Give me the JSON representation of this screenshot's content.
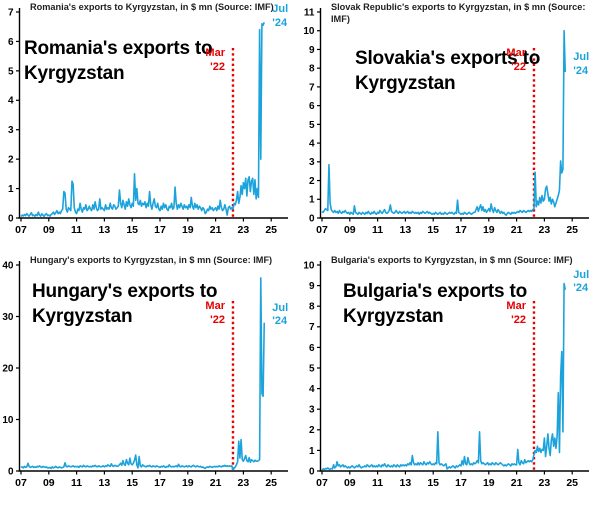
{
  "colors": {
    "series_line": "#1CA3DC",
    "event_line": "#E60000",
    "event_text": "#E60000",
    "end_text": "#1CA3DC",
    "axis": "#000000",
    "annotation_text": "#000000",
    "background": "#FFFFFF"
  },
  "chart_data": [
    {
      "type": "line",
      "country": "Romania",
      "title": "Romania's exports to Kyrgyzstan, in $ mn (Source: IMF)",
      "annotation": "Romania's exports to Kyrgyzstan",
      "x_start_year": 2007,
      "x_frequency": "monthly",
      "x_last_point": "Jul 2024",
      "ylim": [
        0,
        7
      ],
      "ytick_step": 1,
      "xtick_labels": [
        "07",
        "09",
        "11",
        "13",
        "15",
        "17",
        "19",
        "21",
        "23",
        "25"
      ],
      "grid": false,
      "legend": false,
      "vline": {
        "x_year": 2022.25,
        "label_line1": "Mar",
        "label_line2": "'22"
      },
      "end_label": {
        "line1": "Jul",
        "line2": "'24"
      },
      "values": [
        0.05,
        0.1,
        0.07,
        0.12,
        0.08,
        0.15,
        0.1,
        0.06,
        0.12,
        0.18,
        0.08,
        0.1,
        0.06,
        0.12,
        0.08,
        0.2,
        0.1,
        0.06,
        0.14,
        0.1,
        0.05,
        0.12,
        0.15,
        0.08,
        0.1,
        0.06,
        0.12,
        0.15,
        0.2,
        0.12,
        0.18,
        0.25,
        0.15,
        0.2,
        0.15,
        0.25,
        0.3,
        0.9,
        0.85,
        0.3,
        0.2,
        0.35,
        0.3,
        0.25,
        1.25,
        1.15,
        0.35,
        0.2,
        0.15,
        0.3,
        0.25,
        0.5,
        0.3,
        0.2,
        0.35,
        0.3,
        0.45,
        0.25,
        0.3,
        0.4,
        0.3,
        0.25,
        0.45,
        0.3,
        0.55,
        0.35,
        0.25,
        0.3,
        0.65,
        0.3,
        0.35,
        0.3,
        0.25,
        0.45,
        0.3,
        0.35,
        0.3,
        0.5,
        0.35,
        0.3,
        0.45,
        0.4,
        0.3,
        0.35,
        0.4,
        0.95,
        0.5,
        0.35,
        0.6,
        0.45,
        0.3,
        0.55,
        0.4,
        0.65,
        0.45,
        0.35,
        0.5,
        0.4,
        1.5,
        0.6,
        1.0,
        0.5,
        0.45,
        0.6,
        0.4,
        0.5,
        0.45,
        0.55,
        0.35,
        0.5,
        0.4,
        0.9,
        0.45,
        0.3,
        0.5,
        0.65,
        0.4,
        0.35,
        0.5,
        0.3,
        0.25,
        0.4,
        0.3,
        0.5,
        0.35,
        0.45,
        0.3,
        0.25,
        0.4,
        0.35,
        0.5,
        0.3,
        0.35,
        1.05,
        0.5,
        0.3,
        0.45,
        0.35,
        0.5,
        0.4,
        0.3,
        0.45,
        0.35,
        0.4,
        0.3,
        0.45,
        0.35,
        0.7,
        0.4,
        0.3,
        0.5,
        0.35,
        0.45,
        0.3,
        0.4,
        0.35,
        0.25,
        0.35,
        0.3,
        0.15,
        0.2,
        0.3,
        0.25,
        0.4,
        0.3,
        0.35,
        0.25,
        0.3,
        0.35,
        0.25,
        0.4,
        0.3,
        0.6,
        0.35,
        0.25,
        0.3,
        0.45,
        0.3,
        0.1,
        0.35,
        0.4,
        0.3,
        0.35,
        0.3,
        0.5,
        0.45,
        0.6,
        0.9,
        0.5,
        0.7,
        1.1,
        0.8,
        1.2,
        1.0,
        1.35,
        0.75,
        1.3,
        1.4,
        0.9,
        1.25,
        1.35,
        0.8,
        1.3,
        0.65,
        1.0,
        0.7,
        6.4,
        2.0,
        6.6,
        6.55,
        6.65
      ]
    },
    {
      "type": "line",
      "country": "Slovakia",
      "title": "Slovak Republic's exports to Kyrgyzstan, in $ mn (Source: IMF)",
      "annotation": "Slovakia's exports to Kyrgyzstan",
      "x_start_year": 2007,
      "x_frequency": "monthly",
      "x_last_point": "Jul 2024",
      "ylim": [
        0,
        11
      ],
      "ytick_step": 1,
      "xtick_labels": [
        "07",
        "09",
        "11",
        "13",
        "15",
        "17",
        "19",
        "21",
        "23",
        "25"
      ],
      "grid": false,
      "legend": false,
      "vline": {
        "x_year": 2022.25,
        "label_line1": "Mar",
        "label_line2": "'22"
      },
      "end_label": {
        "line1": "Jul",
        "line2": "'24"
      },
      "values": [
        0.35,
        0.3,
        0.4,
        0.5,
        0.45,
        0.4,
        2.85,
        0.8,
        0.45,
        0.35,
        0.3,
        0.4,
        0.3,
        0.35,
        0.25,
        0.4,
        0.3,
        0.25,
        0.35,
        0.3,
        0.4,
        0.3,
        0.25,
        0.3,
        0.2,
        0.3,
        0.25,
        0.2,
        0.65,
        0.3,
        0.25,
        0.2,
        0.3,
        0.25,
        0.2,
        0.3,
        0.25,
        0.2,
        0.3,
        0.25,
        0.35,
        0.25,
        0.2,
        0.3,
        0.25,
        0.35,
        0.25,
        0.2,
        0.3,
        0.25,
        0.4,
        0.3,
        0.25,
        0.35,
        0.45,
        0.3,
        0.25,
        0.3,
        0.4,
        0.7,
        0.35,
        0.3,
        0.25,
        0.3,
        0.4,
        0.3,
        0.25,
        0.35,
        0.3,
        0.25,
        0.3,
        0.35,
        0.25,
        0.3,
        0.35,
        0.25,
        0.3,
        0.25,
        0.35,
        0.3,
        0.25,
        0.3,
        0.25,
        0.3,
        0.2,
        0.3,
        0.25,
        0.35,
        0.3,
        0.25,
        0.3,
        0.35,
        0.25,
        0.3,
        0.25,
        0.2,
        0.25,
        0.2,
        0.3,
        0.25,
        0.2,
        0.25,
        0.3,
        0.2,
        0.25,
        0.2,
        0.3,
        0.25,
        0.2,
        0.25,
        0.3,
        0.25,
        0.3,
        0.25,
        0.2,
        0.3,
        0.25,
        0.95,
        0.3,
        0.25,
        0.2,
        0.25,
        0.2,
        0.3,
        0.25,
        0.2,
        0.25,
        0.3,
        0.25,
        0.2,
        0.25,
        0.3,
        0.3,
        0.45,
        0.6,
        0.35,
        0.55,
        0.7,
        0.4,
        0.6,
        0.35,
        0.45,
        0.3,
        0.4,
        0.5,
        0.35,
        0.75,
        0.45,
        0.3,
        0.55,
        0.4,
        0.3,
        0.45,
        0.35,
        0.25,
        0.35,
        0.25,
        0.3,
        0.2,
        0.15,
        0.25,
        0.3,
        0.25,
        0.2,
        0.3,
        0.25,
        0.3,
        0.25,
        0.3,
        0.35,
        0.3,
        0.4,
        0.35,
        0.3,
        0.4,
        0.35,
        0.3,
        0.35,
        0.4,
        0.35,
        0.4,
        0.35,
        0.45,
        0.5,
        2.45,
        0.6,
        0.9,
        0.7,
        1.1,
        0.8,
        1.2,
        0.9,
        1.0,
        1.55,
        1.7,
        1.3,
        0.9,
        1.1,
        0.75,
        1.0,
        0.85,
        0.6,
        0.8,
        1.0,
        1.2,
        1.5,
        3.05,
        2.4,
        2.6,
        10.0,
        7.8
      ]
    },
    {
      "type": "line",
      "country": "Hungary",
      "title": "Hungary's exports to Kyrgyzstan, in $ mn (Source: IMF)",
      "annotation": "Hungary's exports to Kyrgyzstan",
      "x_start_year": 2007,
      "x_frequency": "monthly",
      "x_last_point": "Jul 2024",
      "ylim": [
        0,
        40
      ],
      "ytick_step": 10,
      "xtick_labels": [
        "07",
        "09",
        "11",
        "13",
        "15",
        "17",
        "19",
        "21",
        "23",
        "25"
      ],
      "grid": false,
      "legend": false,
      "vline": {
        "x_year": 2022.25,
        "label_line1": "Mar",
        "label_line2": "'22"
      },
      "end_label": {
        "line1": "Jul",
        "line2": "'24"
      },
      "values": [
        0.7,
        0.8,
        0.6,
        0.9,
        0.7,
        0.8,
        1.5,
        0.9,
        0.7,
        0.8,
        0.9,
        0.7,
        0.8,
        0.7,
        0.9,
        0.8,
        1.0,
        0.8,
        0.7,
        0.9,
        0.8,
        0.7,
        0.8,
        0.6,
        0.6,
        0.7,
        0.5,
        0.8,
        0.6,
        0.7,
        0.9,
        0.7,
        0.6,
        0.8,
        0.7,
        0.6,
        0.7,
        0.8,
        1.6,
        0.9,
        0.8,
        1.0,
        0.9,
        0.8,
        0.9,
        1.0,
        0.8,
        0.9,
        0.8,
        0.9,
        0.7,
        1.0,
        0.9,
        0.8,
        1.1,
        0.9,
        0.8,
        1.0,
        0.9,
        0.8,
        0.9,
        0.8,
        1.0,
        0.9,
        1.1,
        0.9,
        0.8,
        1.0,
        0.9,
        0.8,
        0.9,
        1.0,
        0.8,
        1.0,
        0.9,
        1.2,
        1.0,
        0.9,
        1.4,
        1.0,
        0.9,
        1.1,
        1.0,
        0.9,
        1.0,
        1.2,
        1.5,
        1.1,
        2.0,
        1.3,
        1.1,
        2.2,
        1.5,
        1.2,
        2.5,
        1.4,
        1.2,
        1.5,
        2.1,
        3.1,
        1.2,
        0.6,
        2.8,
        1.0,
        0.8,
        1.2,
        1.0,
        0.9,
        0.8,
        1.0,
        0.9,
        1.1,
        0.9,
        0.8,
        1.0,
        0.9,
        0.8,
        1.0,
        0.9,
        0.8,
        0.7,
        0.9,
        0.8,
        1.0,
        0.8,
        0.7,
        0.9,
        0.8,
        1.2,
        0.9,
        0.8,
        0.9,
        0.8,
        0.9,
        1.0,
        0.8,
        1.3,
        0.9,
        0.8,
        1.0,
        0.9,
        0.8,
        0.9,
        1.0,
        0.8,
        1.0,
        0.9,
        0.8,
        1.0,
        1.1,
        0.9,
        0.8,
        1.0,
        0.9,
        0.8,
        0.9,
        0.7,
        0.8,
        0.6,
        0.5,
        0.7,
        0.8,
        0.7,
        0.9,
        0.8,
        0.7,
        0.8,
        0.9,
        0.8,
        0.9,
        0.8,
        1.0,
        0.9,
        0.8,
        1.0,
        0.9,
        1.1,
        0.9,
        1.0,
        0.9,
        1.0,
        0.9,
        1.0,
        0.3,
        0.5,
        0.8,
        1.2,
        1.8,
        5.8,
        2.5,
        6.1,
        2.2,
        1.9,
        2.4,
        3.0,
        2.0,
        1.8,
        2.6,
        1.7,
        2.2,
        2.0,
        1.8,
        2.1,
        1.9,
        1.9,
        2.0,
        2.2,
        37.5,
        15.0,
        14.5,
        28.8
      ]
    },
    {
      "type": "line",
      "country": "Bulgaria",
      "title": "Bulgaria's exports to Kyrgyzstan, in $ mn (Source: IMF)",
      "annotation": "Bulgaria's exports to Kyrgyzstan",
      "x_start_year": 2007,
      "x_frequency": "monthly",
      "x_last_point": "Jul 2024",
      "ylim": [
        0,
        10
      ],
      "ytick_step": 1,
      "xtick_labels": [
        "07",
        "09",
        "11",
        "13",
        "15",
        "17",
        "19",
        "21",
        "23",
        "25"
      ],
      "grid": false,
      "legend": false,
      "vline": {
        "x_year": 2022.25,
        "label_line1": "Mar",
        "label_line2": "'22"
      },
      "end_label": {
        "line1": "Jul",
        "line2": "'24"
      },
      "values": [
        0.05,
        0.1,
        0.08,
        0.12,
        0.1,
        0.15,
        0.1,
        0.08,
        0.12,
        0.1,
        0.3,
        0.15,
        0.2,
        0.45,
        0.25,
        0.3,
        0.2,
        0.25,
        0.3,
        0.2,
        0.25,
        0.2,
        0.15,
        0.2,
        0.15,
        0.2,
        0.25,
        0.2,
        0.15,
        0.2,
        0.25,
        0.2,
        0.3,
        0.2,
        0.15,
        0.2,
        0.2,
        0.25,
        0.2,
        0.3,
        0.25,
        0.2,
        0.25,
        0.3,
        0.2,
        0.25,
        0.2,
        0.25,
        0.2,
        0.3,
        0.25,
        0.2,
        0.3,
        0.25,
        0.35,
        0.25,
        0.2,
        0.3,
        0.25,
        0.2,
        0.25,
        0.2,
        0.3,
        0.25,
        0.2,
        0.3,
        0.25,
        0.2,
        0.3,
        0.25,
        0.3,
        0.25,
        0.3,
        0.25,
        0.35,
        0.3,
        0.4,
        0.3,
        0.75,
        0.4,
        0.3,
        0.35,
        0.3,
        0.4,
        0.3,
        0.4,
        0.35,
        0.3,
        0.45,
        0.35,
        0.3,
        0.4,
        0.35,
        0.45,
        0.35,
        0.3,
        0.35,
        0.3,
        0.4,
        0.35,
        1.9,
        0.4,
        0.3,
        0.35,
        0.3,
        0.25,
        0.3,
        0.35,
        0.1,
        0.15,
        0.2,
        0.15,
        0.2,
        0.25,
        0.2,
        0.15,
        0.25,
        0.2,
        0.25,
        0.3,
        0.25,
        0.5,
        0.3,
        0.7,
        0.35,
        0.3,
        0.65,
        0.4,
        0.3,
        0.35,
        0.3,
        0.4,
        0.35,
        0.4,
        0.5,
        0.4,
        1.9,
        0.5,
        0.35,
        0.4,
        0.35,
        0.3,
        0.35,
        0.4,
        0.3,
        0.35,
        0.3,
        0.4,
        0.35,
        0.3,
        0.4,
        0.35,
        0.3,
        0.35,
        0.4,
        0.35,
        0.3,
        0.25,
        0.3,
        0.25,
        0.3,
        0.35,
        0.3,
        0.25,
        0.35,
        0.3,
        0.35,
        0.3,
        0.3,
        1.05,
        0.4,
        0.3,
        0.5,
        0.4,
        0.35,
        0.55,
        0.4,
        0.45,
        0.5,
        0.45,
        0.5,
        0.45,
        0.55,
        0.8,
        1.0,
        0.9,
        1.2,
        0.95,
        1.1,
        0.9,
        1.05,
        1.0,
        1.6,
        0.7,
        1.2,
        1.8,
        1.1,
        0.75,
        1.5,
        1.8,
        1.2,
        1.6,
        1.1,
        1.7,
        3.8,
        0.9,
        4.6,
        5.8,
        1.9,
        9.1,
        8.8
      ]
    }
  ]
}
